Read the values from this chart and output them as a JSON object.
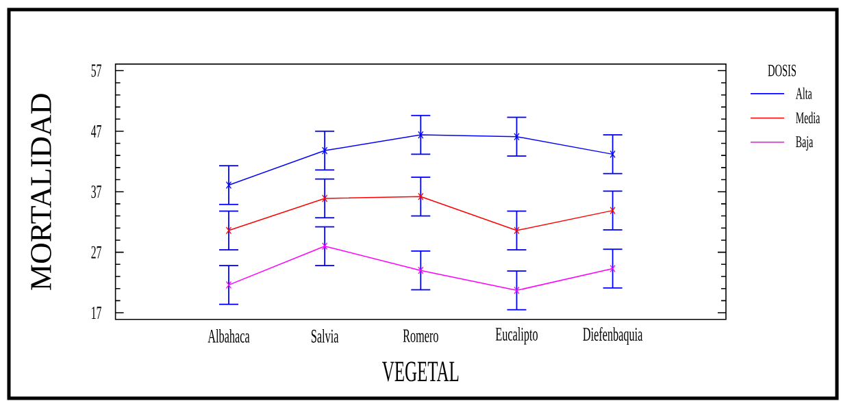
{
  "chart_data": {
    "type": "line",
    "xlabel": "VEGETAL",
    "ylabel": "MORTALIDAD",
    "legend_title": "DOSIS",
    "categories": [
      "Albahaca",
      "Salvia",
      "Romero",
      "Eucalipto",
      "Diefenbaquia"
    ],
    "series": [
      {
        "name": "Alta",
        "color": "#0000ff",
        "values": [
          38.1,
          43.8,
          46.4,
          46.1,
          43.2
        ],
        "errors": [
          3.2,
          3.2,
          3.2,
          3.2,
          3.2
        ]
      },
      {
        "name": "Media",
        "color": "#ff0000",
        "values": [
          30.6,
          35.9,
          36.2,
          30.6,
          33.9
        ],
        "errors": [
          3.2,
          3.2,
          3.2,
          3.2,
          3.2
        ]
      },
      {
        "name": "Baja",
        "color": "#ff00ff",
        "values": [
          21.6,
          28.0,
          24.0,
          20.7,
          24.3
        ],
        "errors": [
          3.2,
          3.2,
          3.2,
          3.2,
          3.2
        ]
      }
    ],
    "ylim": [
      15.9,
      58.1
    ],
    "yticks": [
      17,
      {
        "value": 19,
        "label": null
      },
      {
        "value": 21,
        "label": null
      },
      {
        "value": 23,
        "label": null
      },
      {
        "value": 25,
        "label": null
      },
      27,
      {
        "value": 29,
        "label": null
      },
      {
        "value": 31,
        "label": null
      },
      {
        "value": 33,
        "label": null
      },
      {
        "value": 35,
        "label": null
      },
      37,
      {
        "value": 39,
        "label": null
      },
      {
        "value": 41,
        "label": null
      },
      {
        "value": 43,
        "label": null
      },
      {
        "value": 45,
        "label": null
      },
      47,
      {
        "value": 49,
        "label": null
      },
      {
        "value": 51,
        "label": null
      },
      {
        "value": 53,
        "label": null
      },
      {
        "value": 55,
        "label": null
      },
      57
    ],
    "legend": "top right",
    "marker": "cross",
    "line_style": "solid"
  }
}
